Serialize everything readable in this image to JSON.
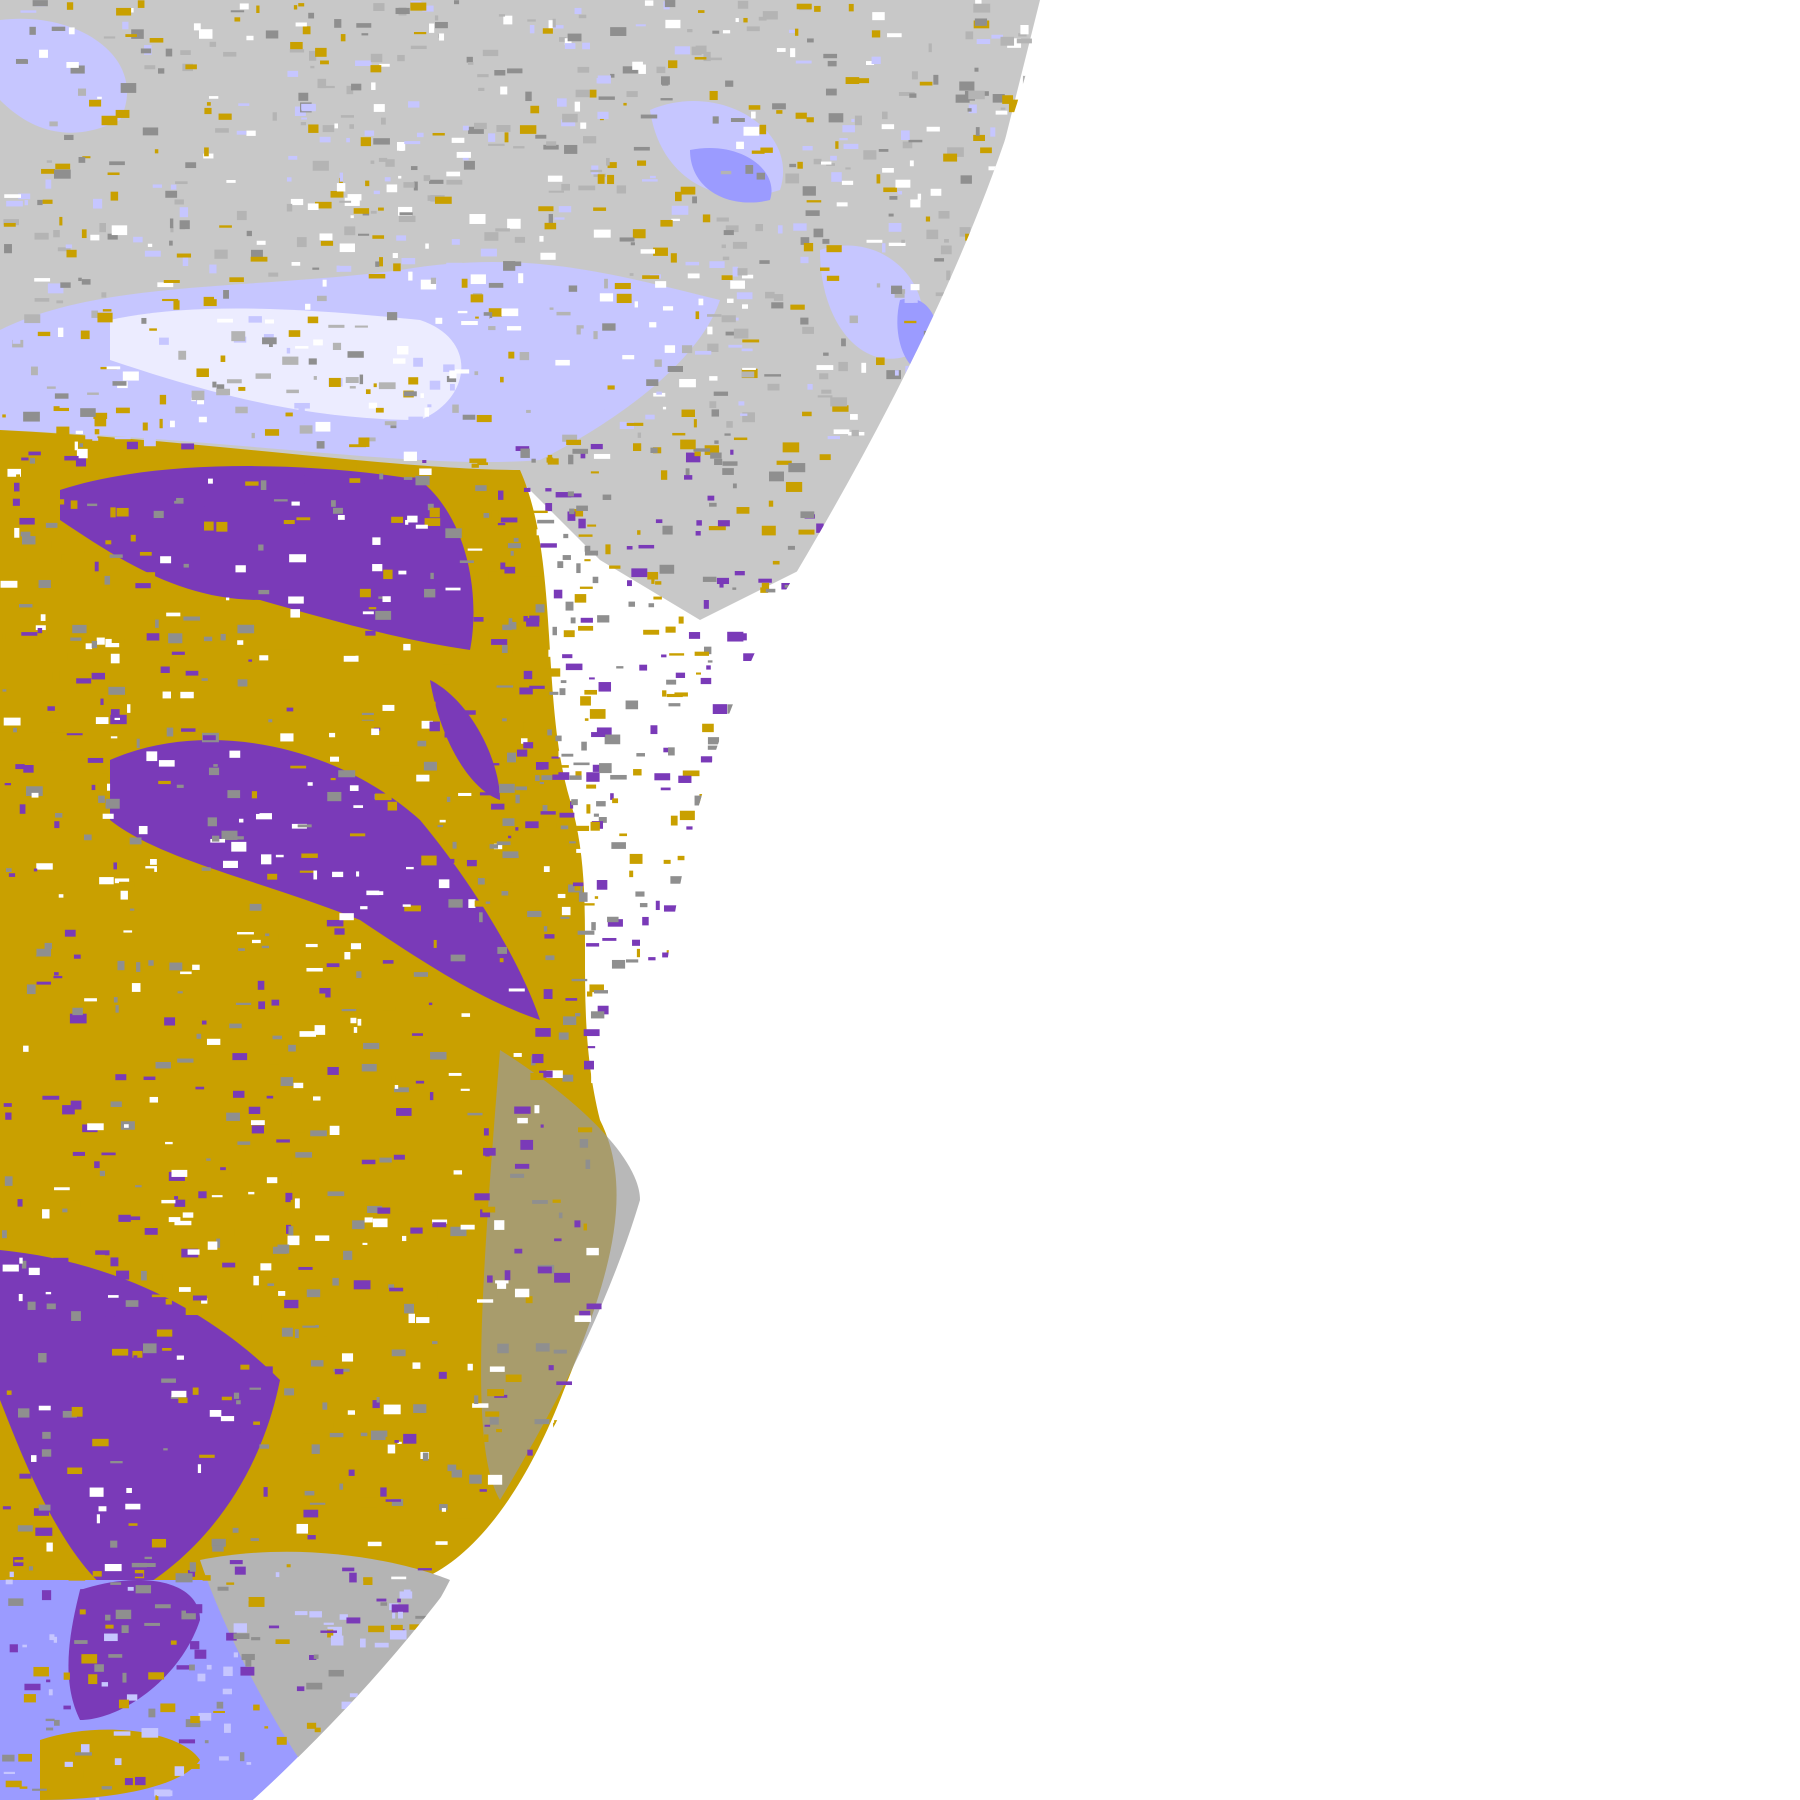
{
  "image": {
    "kind": "satellite cloud classification imagery (partial Earth disk)",
    "background": "#ffffff",
    "palette": {
      "gold": "#c9a000",
      "purple": "#7a3ab8",
      "gray": "#8f8f8f",
      "light_gray": "#b4b4b4",
      "lavender": "#c6c6ff",
      "periwinkle": "#9b9bff",
      "pale": "#ececff",
      "magenta": "#d050d0"
    }
  }
}
